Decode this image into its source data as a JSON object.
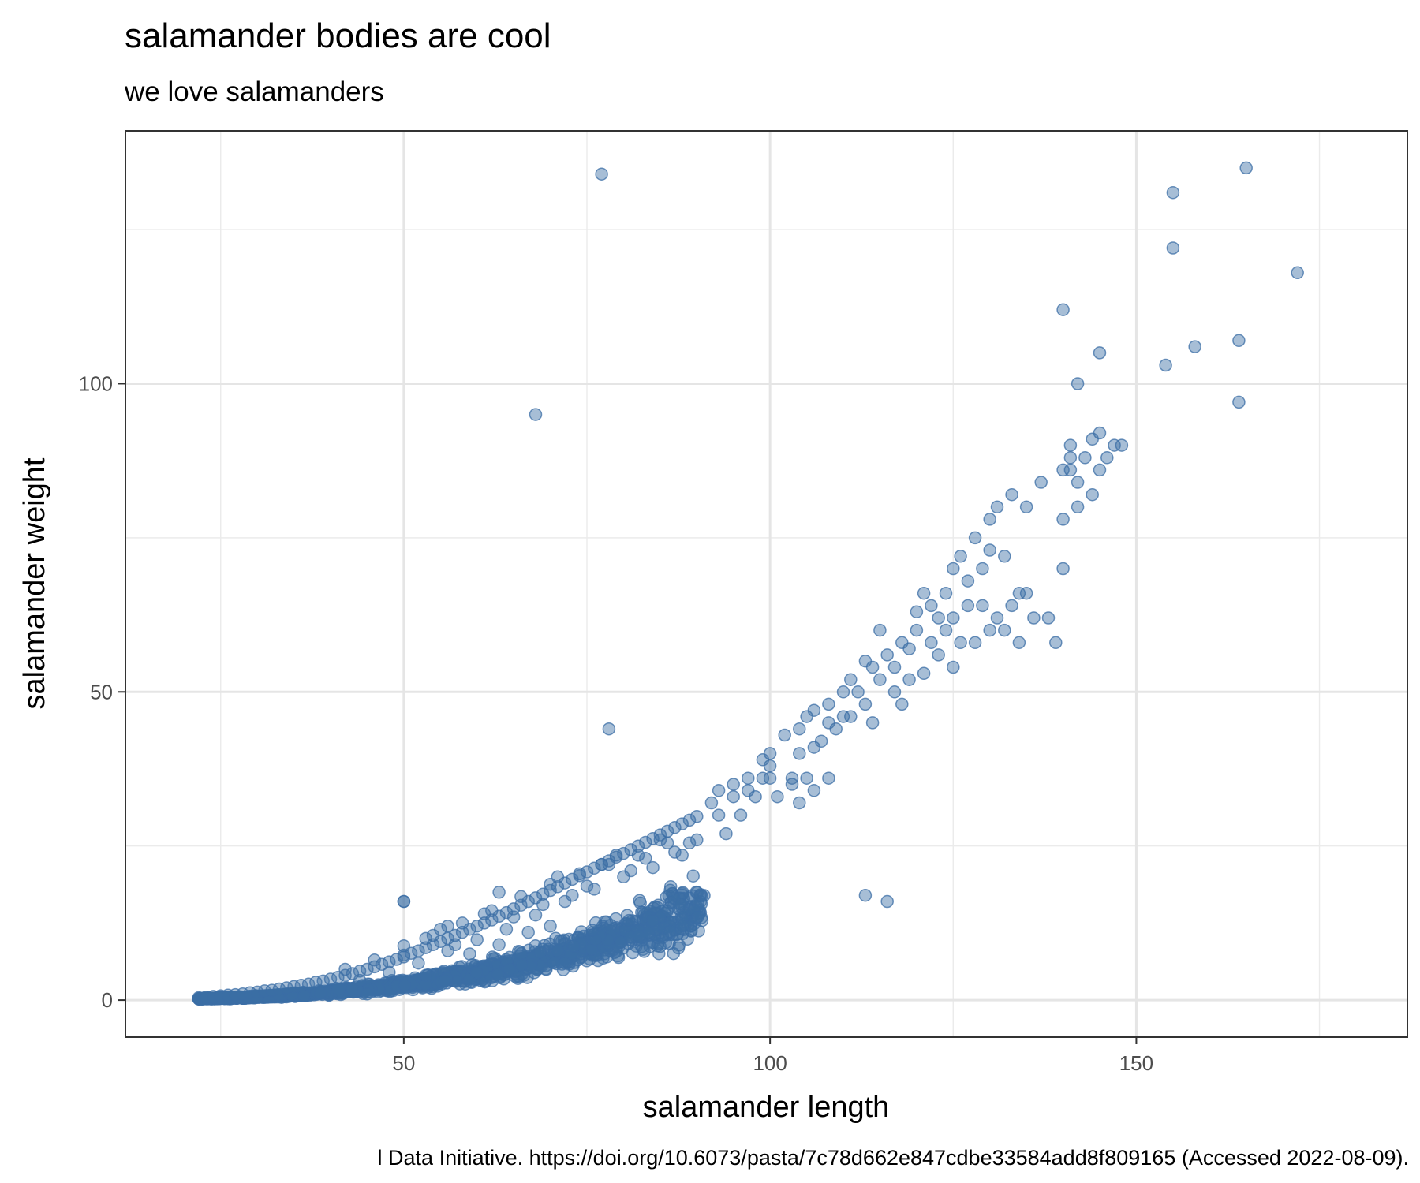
{
  "chart_data": {
    "type": "scatter",
    "title": "salamander bodies are cool",
    "subtitle": "we love salamanders",
    "xlabel": "salamander length",
    "ylabel": "salamander weight",
    "caption": "l Data Initiative. https://doi.org/10.6073/pasta/7c78d662e847cdbe33584add8f809165 (Accessed 2022-08-09).",
    "xlim": [
      12,
      187
    ],
    "ylim": [
      -6,
      141
    ],
    "x_ticks": [
      50,
      100,
      150
    ],
    "y_ticks": [
      0,
      50,
      100
    ],
    "x_tick_labels": [
      "50",
      "100",
      "150"
    ],
    "y_tick_labels": [
      "0",
      "50",
      "100"
    ],
    "grid": true,
    "point_color": "#3b6ea5",
    "point_opacity": 0.45,
    "x": [
      22,
      23,
      24,
      25,
      26,
      27,
      28,
      29,
      30,
      31,
      32,
      33,
      34,
      35,
      36,
      37,
      38,
      39,
      40,
      41,
      42,
      43,
      44,
      45,
      46,
      47,
      48,
      49,
      50,
      50,
      51,
      52,
      53,
      54,
      55,
      56,
      57,
      58,
      59,
      60,
      61,
      62,
      63,
      64,
      65,
      66,
      67,
      68,
      69,
      70,
      71,
      72,
      73,
      74,
      75,
      76,
      77,
      78,
      79,
      80,
      81,
      82,
      83,
      84,
      85,
      86,
      87,
      88,
      89,
      90,
      42,
      44,
      46,
      48,
      50,
      52,
      54,
      56,
      58,
      60,
      62,
      64,
      66,
      68,
      70,
      72,
      74,
      76,
      78,
      80,
      82,
      84,
      86,
      88,
      90,
      45,
      50,
      53,
      55,
      57,
      59,
      61,
      63,
      65,
      67,
      69,
      71,
      73,
      75,
      77,
      79,
      81,
      83,
      85,
      87,
      89,
      92,
      93,
      94,
      95,
      96,
      97,
      98,
      99,
      100,
      100,
      100,
      101,
      102,
      103,
      103,
      104,
      104,
      105,
      105,
      106,
      106,
      107,
      108,
      108,
      109,
      110,
      110,
      111,
      111,
      112,
      113,
      113,
      114,
      114,
      115,
      115,
      116,
      117,
      117,
      118,
      118,
      119,
      119,
      120,
      120,
      121,
      121,
      122,
      122,
      123,
      123,
      124,
      124,
      125,
      125,
      125,
      126,
      126,
      127,
      127,
      128,
      128,
      129,
      129,
      130,
      130,
      130,
      131,
      131,
      132,
      132,
      133,
      133,
      134,
      134,
      135,
      135,
      136,
      137,
      138,
      139,
      140,
      140,
      140,
      141,
      141,
      142,
      142,
      143,
      144,
      145,
      145,
      146,
      147,
      148,
      77,
      68,
      78,
      113,
      116,
      50,
      53,
      56,
      63,
      70,
      71,
      72,
      93,
      95,
      97,
      99,
      104,
      106,
      108,
      154,
      155,
      155,
      158,
      164,
      164,
      165,
      172,
      140,
      145,
      142,
      141,
      144
    ],
    "y": [
      0.4,
      0.5,
      0.6,
      0.7,
      0.8,
      0.9,
      1.0,
      1.2,
      1.3,
      1.5,
      1.6,
      1.8,
      2.0,
      2.2,
      2.4,
      2.6,
      2.9,
      3.1,
      3.4,
      3.7,
      4.0,
      4.3,
      4.7,
      5.0,
      5.4,
      5.8,
      6.2,
      6.6,
      7.0,
      7.3,
      7.6,
      8.0,
      8.5,
      9.0,
      9.5,
      10.0,
      10.5,
      11.0,
      11.5,
      12.0,
      12.5,
      13.0,
      13.6,
      14.2,
      14.8,
      15.4,
      16.0,
      16.6,
      17.2,
      17.8,
      18.4,
      19.0,
      19.6,
      20.2,
      20.8,
      21.4,
      22.0,
      22.6,
      23.2,
      23.8,
      24.4,
      25.0,
      25.6,
      26.2,
      26.8,
      27.4,
      28.0,
      28.6,
      29.2,
      29.8,
      5.0,
      3.2,
      6.5,
      4.5,
      8.8,
      6.0,
      10.5,
      8.0,
      12.5,
      9.8,
      14.5,
      11.5,
      16.8,
      13.8,
      18.8,
      16.0,
      20.5,
      18.0,
      22.0,
      20.0,
      23.5,
      21.5,
      25.5,
      23.5,
      26.0,
      1.0,
      16.0,
      4.0,
      11.5,
      9.0,
      7.5,
      14.0,
      17.5,
      13.5,
      11.0,
      15.5,
      20.0,
      17.0,
      18.5,
      22.0,
      23.5,
      21.0,
      23.0,
      26.0,
      24.0,
      25.5,
      32,
      34,
      27,
      33,
      30,
      34,
      33,
      36,
      40,
      38,
      36,
      33,
      43,
      36,
      35,
      44,
      40,
      36,
      46,
      41,
      47,
      42,
      45,
      48,
      44,
      46,
      50,
      46,
      52,
      50,
      48,
      55,
      54,
      45,
      52,
      60,
      56,
      50,
      54,
      48,
      58,
      52,
      57,
      63,
      60,
      53,
      66,
      64,
      58,
      62,
      56,
      66,
      60,
      70,
      62,
      54,
      72,
      58,
      68,
      64,
      75,
      58,
      70,
      64,
      78,
      60,
      73,
      62,
      80,
      60,
      72,
      64,
      82,
      58,
      66,
      80,
      66,
      62,
      84,
      62,
      58,
      86,
      70,
      78,
      90,
      86,
      84,
      80,
      88,
      82,
      92,
      86,
      88,
      90,
      90,
      134,
      95,
      44,
      17,
      16,
      16,
      10,
      12,
      9,
      12,
      8,
      6,
      30,
      35,
      36,
      39,
      32,
      34,
      36,
      103,
      122,
      131,
      106,
      97,
      107,
      135,
      118,
      112,
      105,
      100,
      88,
      91
    ],
    "dense_band": {
      "x_start": 22,
      "x_end": 91,
      "curve_a": 1.72e-05,
      "curve_b": 3.04,
      "spread": 0.16
    }
  }
}
